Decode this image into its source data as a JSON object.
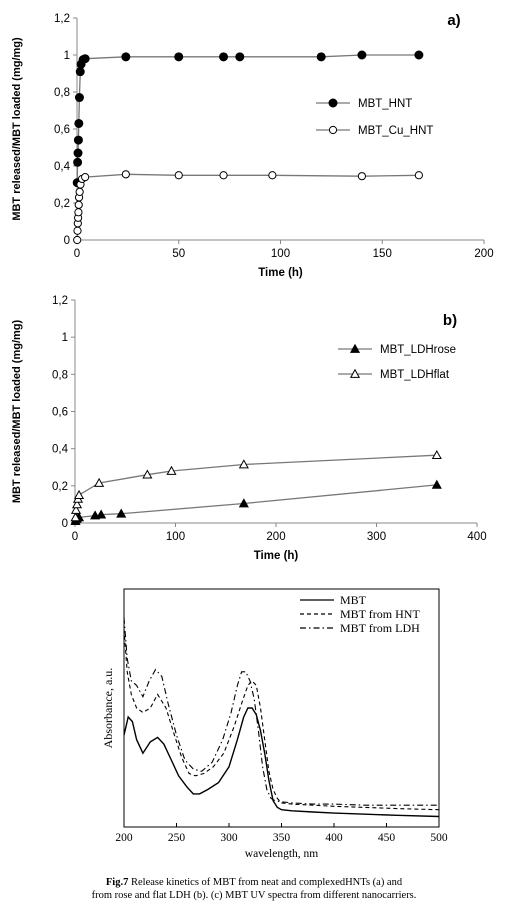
{
  "chart_data": [
    {
      "type": "scatter",
      "panel_label": "a)",
      "xlabel": "Time (h)",
      "ylabel": "MBT released/MBT loaded (mg/mg)",
      "xlim": [
        0,
        200
      ],
      "ylim": [
        0,
        1.2
      ],
      "xticks": [
        "0",
        "50",
        "100",
        "150",
        "200"
      ],
      "yticks": [
        "0",
        "0,2",
        "0,4",
        "0,6",
        "0,8",
        "1",
        "1,2"
      ],
      "legend_position": "middle-right",
      "series": [
        {
          "name": "MBT_HNT",
          "marker": "filled-circle",
          "x": [
            0.1,
            0.3,
            0.5,
            0.7,
            0.9,
            1.2,
            1.6,
            2,
            3,
            4,
            24,
            50,
            72,
            80,
            120,
            140,
            168
          ],
          "y": [
            0.31,
            0.42,
            0.47,
            0.54,
            0.63,
            0.77,
            0.91,
            0.95,
            0.975,
            0.98,
            0.99,
            0.99,
            0.99,
            0.99,
            0.99,
            1.0,
            1.0
          ]
        },
        {
          "name": "MBT_Cu_HNT",
          "marker": "open-circle",
          "x": [
            0.1,
            0.25,
            0.4,
            0.55,
            0.7,
            0.85,
            1,
            1.3,
            1.7,
            2.5,
            4,
            24,
            50,
            72,
            96,
            140,
            168
          ],
          "y": [
            0.0,
            0.05,
            0.09,
            0.12,
            0.15,
            0.19,
            0.23,
            0.26,
            0.3,
            0.33,
            0.34,
            0.355,
            0.35,
            0.35,
            0.35,
            0.345,
            0.35
          ]
        }
      ]
    },
    {
      "type": "scatter",
      "panel_label": "b)",
      "xlabel": "Time (h)",
      "ylabel": "MBT released/MBT loaded (mg/mg)",
      "xlim": [
        0,
        400
      ],
      "ylim": [
        0,
        1.2
      ],
      "xticks": [
        "0",
        "100",
        "200",
        "300",
        "400"
      ],
      "yticks": [
        "0",
        "0,2",
        "0,4",
        "0,6",
        "0,8",
        "1",
        "1,2"
      ],
      "legend_position": "middle-right",
      "series": [
        {
          "name": "MBT_LDHrose",
          "marker": "filled-triangle",
          "x": [
            0.5,
            1,
            2,
            4,
            20,
            26,
            46,
            168,
            360
          ],
          "y": [
            0.01,
            0.02,
            0.025,
            0.03,
            0.04,
            0.045,
            0.05,
            0.105,
            0.205
          ]
        },
        {
          "name": "MBT_LDHflat",
          "marker": "open-triangle",
          "x": [
            0.5,
            1,
            2,
            3,
            4,
            24,
            72,
            96,
            168,
            360
          ],
          "y": [
            0.03,
            0.07,
            0.1,
            0.13,
            0.15,
            0.215,
            0.26,
            0.28,
            0.315,
            0.365
          ]
        }
      ]
    },
    {
      "type": "line",
      "xlabel": "wavelength, nm",
      "ylabel": "Absorbance, a.u.",
      "xlim": [
        200,
        500
      ],
      "xticks": [
        "200",
        "250",
        "300",
        "350",
        "400",
        "450",
        "500"
      ],
      "legend_position": "top-right",
      "series": [
        {
          "name": "MBT",
          "style": "solid",
          "x": [
            200,
            204,
            208,
            212,
            218,
            225,
            232,
            238,
            245,
            252,
            260,
            266,
            272,
            280,
            290,
            300,
            308,
            314,
            318,
            322,
            326,
            330,
            334,
            338,
            342,
            346,
            350,
            360,
            380,
            400,
            430,
            460,
            500
          ],
          "y": [
            0.38,
            0.46,
            0.44,
            0.36,
            0.3,
            0.35,
            0.37,
            0.34,
            0.27,
            0.2,
            0.15,
            0.12,
            0.12,
            0.14,
            0.17,
            0.24,
            0.36,
            0.46,
            0.5,
            0.5,
            0.47,
            0.4,
            0.3,
            0.18,
            0.09,
            0.06,
            0.05,
            0.045,
            0.04,
            0.035,
            0.03,
            0.025,
            0.02
          ]
        },
        {
          "name": "MBT from HNT",
          "style": "dashed",
          "x": [
            200,
            203,
            207,
            212,
            218,
            225,
            232,
            240,
            248,
            255,
            262,
            268,
            276,
            285,
            295,
            305,
            312,
            318,
            322,
            326,
            330,
            334,
            338,
            342,
            346,
            350,
            360,
            380,
            400,
            430,
            460,
            500
          ],
          "y": [
            0.85,
            0.66,
            0.56,
            0.5,
            0.48,
            0.5,
            0.56,
            0.5,
            0.38,
            0.28,
            0.21,
            0.2,
            0.21,
            0.24,
            0.3,
            0.42,
            0.52,
            0.6,
            0.62,
            0.6,
            0.5,
            0.36,
            0.22,
            0.14,
            0.1,
            0.08,
            0.075,
            0.07,
            0.065,
            0.06,
            0.055,
            0.05
          ]
        },
        {
          "name": "MBT from LDH",
          "style": "dash-dot",
          "x": [
            200,
            203,
            207,
            212,
            218,
            224,
            230,
            236,
            242,
            250,
            258,
            266,
            274,
            284,
            294,
            302,
            308,
            312,
            316,
            320,
            324,
            328,
            332,
            336,
            340,
            344,
            350,
            360,
            380,
            400,
            430,
            460,
            500
          ],
          "y": [
            0.9,
            0.72,
            0.62,
            0.6,
            0.55,
            0.62,
            0.67,
            0.64,
            0.52,
            0.38,
            0.27,
            0.23,
            0.22,
            0.26,
            0.36,
            0.48,
            0.6,
            0.66,
            0.66,
            0.62,
            0.54,
            0.4,
            0.24,
            0.14,
            0.1,
            0.09,
            0.085,
            0.08,
            0.075,
            0.075,
            0.07,
            0.07,
            0.07
          ]
        }
      ]
    }
  ],
  "caption": {
    "label": "Fig.7",
    "line1": " Release kinetics of MBT from neat and complexedHNTs (a) and",
    "line2": "from rose and flat LDH (b). (c) MBT UV spectra from different nanocarriers."
  }
}
